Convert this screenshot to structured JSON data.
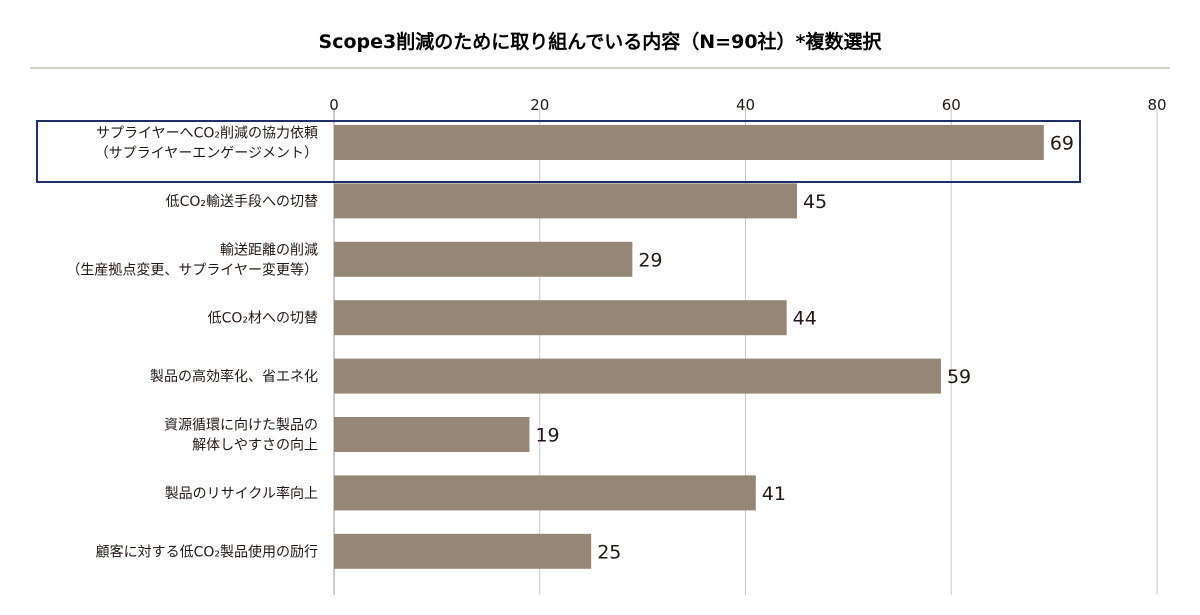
{
  "chart_data": {
    "type": "bar",
    "orientation": "horizontal",
    "title": "Scope3削減のために取り組んでいる内容（N=90社）*複数選択",
    "xlabel": "",
    "ylabel": "",
    "xlim": [
      0,
      80
    ],
    "x_ticks": [
      0,
      20,
      40,
      60,
      80
    ],
    "grid": true,
    "categories": [
      [
        "サプライヤーへCO₂削減の協力依頼",
        "（サプライヤーエンゲージメント）"
      ],
      [
        "低CO₂輸送手段への切替"
      ],
      [
        "輸送距離の削減",
        "（生産拠点変更、サプライヤー変更等）"
      ],
      [
        "低CO₂材への切替"
      ],
      [
        "製品の高効率化、省エネ化"
      ],
      [
        "資源循環に向けた製品の",
        "解体しやすさの向上"
      ],
      [
        "製品のリサイクル率向上"
      ],
      [
        "顧客に対する低CO₂製品使用の励行"
      ]
    ],
    "values": [
      69,
      45,
      29,
      44,
      59,
      19,
      41,
      25
    ],
    "highlighted_category_index": 0,
    "colors": {
      "bar": "#968676",
      "grid": "#c8c8c8",
      "highlight_border": "#1f2f6b",
      "rule": "#c9c4b0",
      "axis": "#9a9a9a"
    }
  }
}
